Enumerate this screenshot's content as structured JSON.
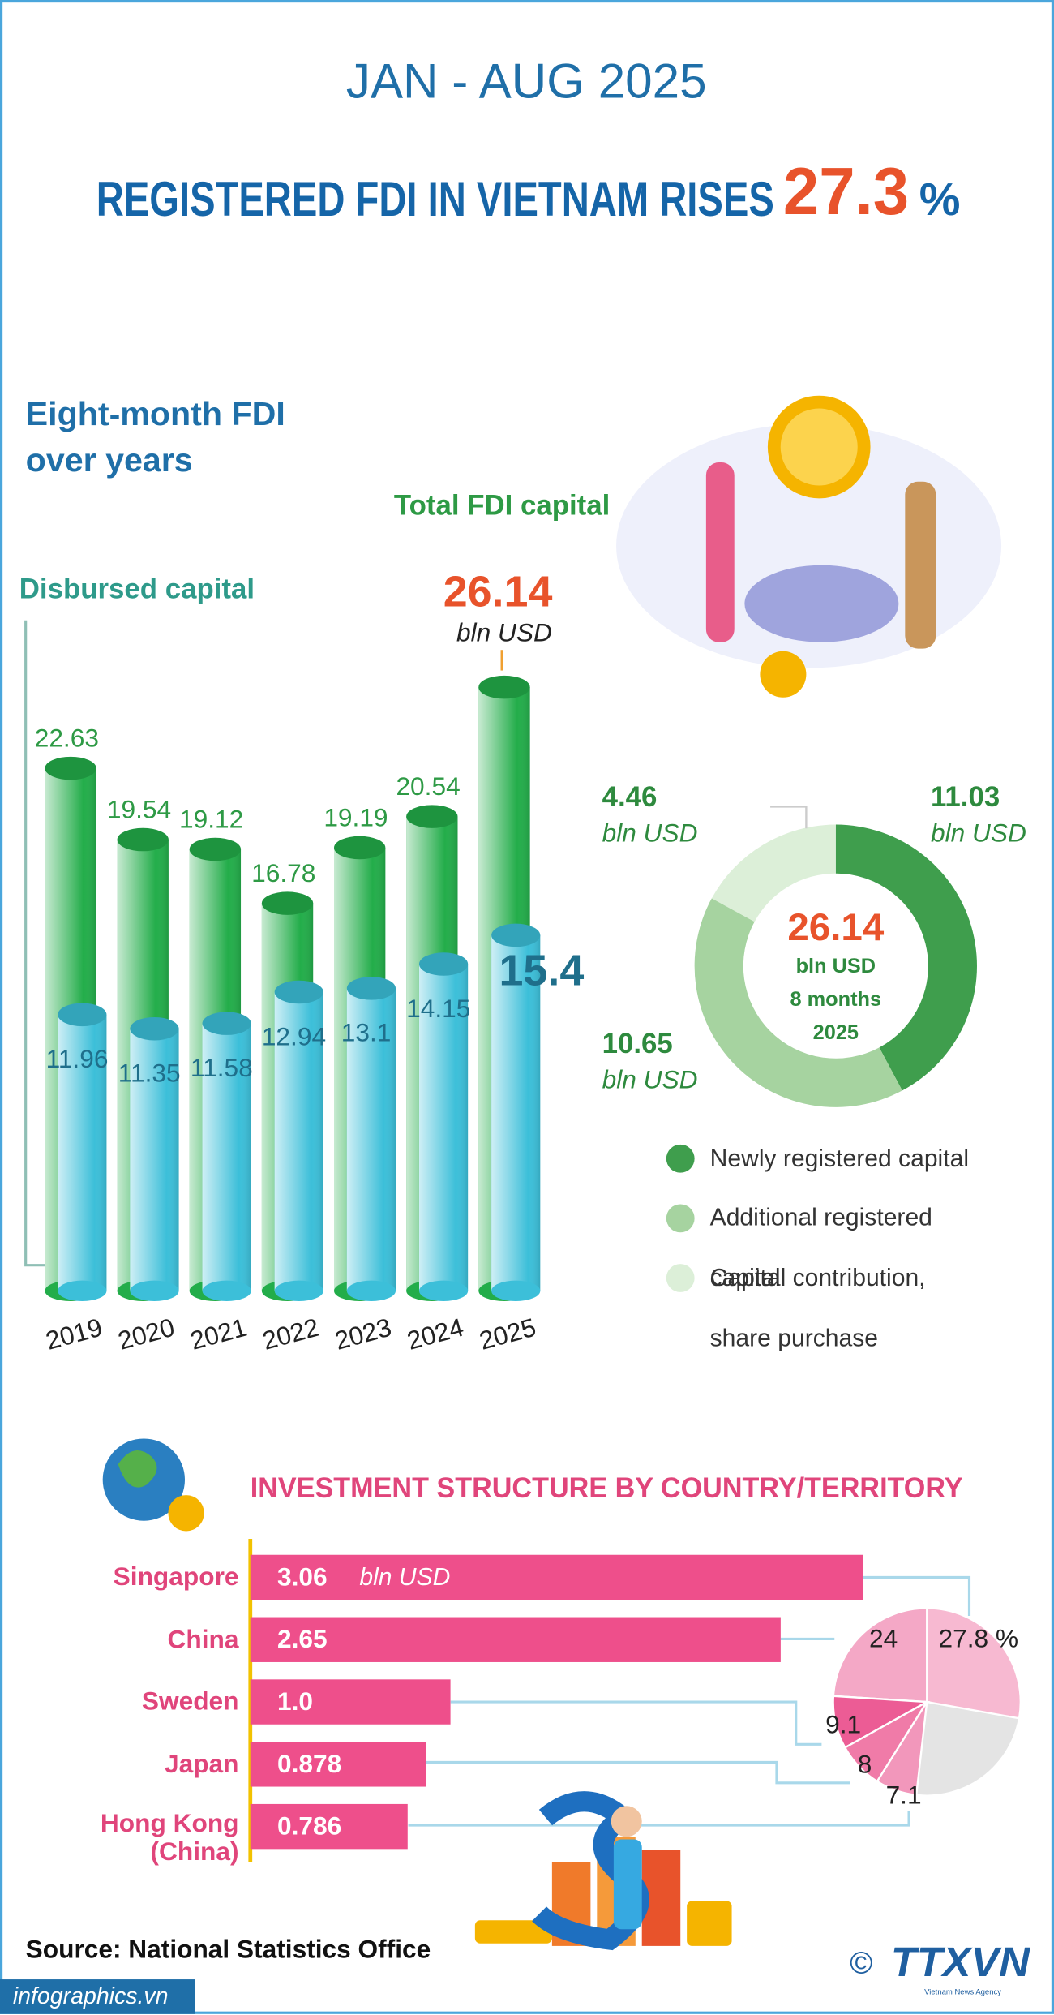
{
  "header": {
    "period": "JAN - AUG 2025",
    "headline": "REGISTERED FDI IN VIETNAM RISES",
    "growth": 27.3,
    "growth_unit": "%"
  },
  "chart_data": [
    {
      "type": "bar",
      "orientation": "vertical",
      "title": "Eight-month FDI over years",
      "unit": "bln USD",
      "categories": [
        "2019",
        "2020",
        "2021",
        "2022",
        "2023",
        "2024",
        "2025"
      ],
      "series": [
        {
          "name": "Total FDI capital",
          "color": "#23ad4a",
          "values": [
            22.63,
            19.54,
            19.12,
            16.78,
            19.19,
            20.54,
            26.14
          ]
        },
        {
          "name": "Disbursed capital",
          "color": "#3cbfd9",
          "values": [
            11.96,
            11.35,
            11.58,
            12.94,
            13.1,
            14.15,
            15.4
          ]
        }
      ]
    },
    {
      "type": "donut",
      "total": 26.14,
      "unit": "bln USD",
      "center_note": "8 months 2025",
      "categories": [
        "Newly registered capital",
        "Additional registered capital",
        "Capital contribution, share purchase"
      ],
      "values": [
        11.03,
        10.65,
        4.46
      ],
      "colors": [
        "#3f9e4d",
        "#a6d3a0",
        "#dcefd8"
      ]
    },
    {
      "type": "bar",
      "orientation": "horizontal",
      "title": "INVESTMENT STRUCTURE BY COUNTRY/TERRITORY",
      "unit": "bln USD",
      "categories": [
        "Singapore",
        "China",
        "Sweden",
        "Japan",
        "Hong Kong (China)"
      ],
      "values": [
        3.06,
        2.65,
        1.0,
        0.878,
        0.786
      ],
      "value_labels": [
        "3.06",
        "2.65",
        "1.0",
        "0.878",
        "0.786"
      ],
      "color": "#ee4f8b"
    },
    {
      "type": "pie",
      "values": [
        27.8,
        24,
        9.1,
        8,
        7.1
      ],
      "value_labels": [
        "27.8 %",
        "24",
        "9.1",
        "8",
        "7.1"
      ],
      "colors": [
        "#f7b9d1",
        "#f4a8c6",
        "#ec5c95",
        "#f07ba8",
        "#f297bb"
      ],
      "rest_color": "#e4e4e4"
    }
  ],
  "footer": {
    "source": "Source: National Statistics Office",
    "site": "infographics.vn",
    "copyright": "©",
    "logo": "TTXVN",
    "logo_sub": "Vietnam News Agency"
  }
}
